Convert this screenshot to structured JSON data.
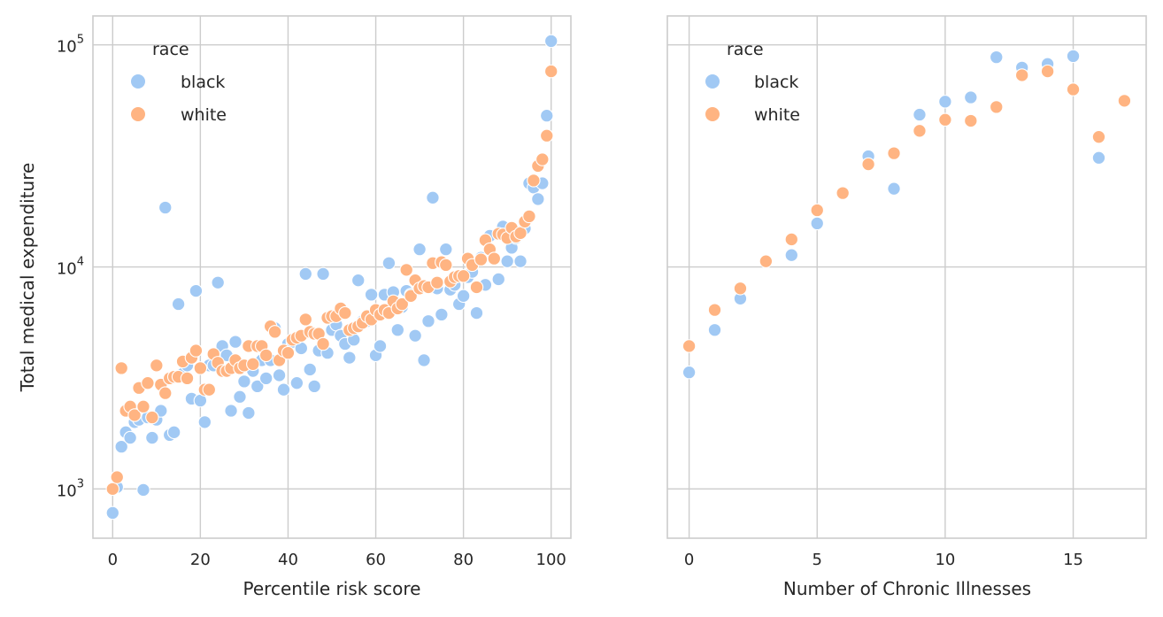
{
  "chart_data": [
    {
      "type": "scatter",
      "title": "",
      "xlabel": "Percentile risk score",
      "ylabel": "Total medical expenditure",
      "yscale": "log",
      "xlim": [
        -4.5,
        104.5
      ],
      "ylim": [
        600,
        135000
      ],
      "xticks": [
        0,
        20,
        40,
        60,
        80,
        100
      ],
      "yticks": [
        1000,
        10000,
        100000
      ],
      "ytick_labels": [
        {
          "base": "10",
          "exp": "3"
        },
        {
          "base": "10",
          "exp": "4"
        },
        {
          "base": "10",
          "exp": "5"
        }
      ],
      "grid": true,
      "legend": {
        "title": "race",
        "position": "upper-left",
        "entries": [
          "black",
          "white"
        ]
      },
      "series": [
        {
          "name": "black",
          "color": "#a1c9f4",
          "points": [
            [
              0,
              780
            ],
            [
              1,
              1020
            ],
            [
              2,
              1550
            ],
            [
              3,
              1800
            ],
            [
              4,
              1700
            ],
            [
              5,
              2000
            ],
            [
              6,
              2050
            ],
            [
              7,
              990
            ],
            [
              8,
              2100
            ],
            [
              9,
              1700
            ],
            [
              10,
              2050
            ],
            [
              11,
              2250
            ],
            [
              12,
              18500
            ],
            [
              13,
              1750
            ],
            [
              14,
              1800
            ],
            [
              15,
              6800
            ],
            [
              16,
              3300
            ],
            [
              17,
              3600
            ],
            [
              18,
              2550
            ],
            [
              19,
              7800
            ],
            [
              20,
              2500
            ],
            [
              21,
              2000
            ],
            [
              22,
              3600
            ],
            [
              23,
              3600
            ],
            [
              24,
              8500
            ],
            [
              25,
              4400
            ],
            [
              26,
              4000
            ],
            [
              27,
              2250
            ],
            [
              28,
              4600
            ],
            [
              29,
              2600
            ],
            [
              30,
              3050
            ],
            [
              31,
              2200
            ],
            [
              32,
              3400
            ],
            [
              33,
              2900
            ],
            [
              34,
              3800
            ],
            [
              35,
              3150
            ],
            [
              36,
              3800
            ],
            [
              37,
              5300
            ],
            [
              38,
              3250
            ],
            [
              39,
              2800
            ],
            [
              40,
              4500
            ],
            [
              41,
              4600
            ],
            [
              42,
              3000
            ],
            [
              43,
              4300
            ],
            [
              44,
              9300
            ],
            [
              45,
              3450
            ],
            [
              46,
              2900
            ],
            [
              47,
              4200
            ],
            [
              48,
              9300
            ],
            [
              49,
              4100
            ],
            [
              50,
              5200
            ],
            [
              51,
              5500
            ],
            [
              52,
              4900
            ],
            [
              53,
              4500
            ],
            [
              54,
              3900
            ],
            [
              55,
              4700
            ],
            [
              56,
              8700
            ],
            [
              57,
              5700
            ],
            [
              58,
              5700
            ],
            [
              59,
              7500
            ],
            [
              60,
              4000
            ],
            [
              61,
              4400
            ],
            [
              62,
              7500
            ],
            [
              63,
              10400
            ],
            [
              64,
              7700
            ],
            [
              65,
              5200
            ],
            [
              66,
              6600
            ],
            [
              67,
              7800
            ],
            [
              68,
              7500
            ],
            [
              69,
              4900
            ],
            [
              70,
              12000
            ],
            [
              71,
              3800
            ],
            [
              72,
              5700
            ],
            [
              73,
              20500
            ],
            [
              74,
              8000
            ],
            [
              75,
              6100
            ],
            [
              76,
              12000
            ],
            [
              77,
              7900
            ],
            [
              78,
              8300
            ],
            [
              79,
              6800
            ],
            [
              80,
              7400
            ],
            [
              81,
              9000
            ],
            [
              82,
              9500
            ],
            [
              83,
              6200
            ],
            [
              84,
              11000
            ],
            [
              85,
              8300
            ],
            [
              86,
              13800
            ],
            [
              87,
              11000
            ],
            [
              88,
              8800
            ],
            [
              89,
              15200
            ],
            [
              90,
              10600
            ],
            [
              91,
              12200
            ],
            [
              92,
              13500
            ],
            [
              93,
              10600
            ],
            [
              94,
              14900
            ],
            [
              95,
              23800
            ],
            [
              96,
              22800
            ],
            [
              97,
              20200
            ],
            [
              98,
              23800
            ],
            [
              99,
              48000
            ],
            [
              100,
              104000
            ]
          ]
        },
        {
          "name": "white",
          "color": "#ffb482",
          "points": [
            [
              0,
              1000
            ],
            [
              1,
              1130
            ],
            [
              2,
              3500
            ],
            [
              3,
              2250
            ],
            [
              4,
              2350
            ],
            [
              5,
              2150
            ],
            [
              6,
              2850
            ],
            [
              7,
              2350
            ],
            [
              8,
              3000
            ],
            [
              9,
              2100
            ],
            [
              10,
              3600
            ],
            [
              11,
              2950
            ],
            [
              12,
              2700
            ],
            [
              13,
              3150
            ],
            [
              14,
              3200
            ],
            [
              15,
              3200
            ],
            [
              16,
              3750
            ],
            [
              17,
              3150
            ],
            [
              18,
              3900
            ],
            [
              19,
              4200
            ],
            [
              20,
              3500
            ],
            [
              21,
              2800
            ],
            [
              22,
              2800
            ],
            [
              23,
              4050
            ],
            [
              24,
              3700
            ],
            [
              25,
              3400
            ],
            [
              26,
              3400
            ],
            [
              27,
              3500
            ],
            [
              28,
              3800
            ],
            [
              29,
              3500
            ],
            [
              30,
              3600
            ],
            [
              31,
              4400
            ],
            [
              32,
              3650
            ],
            [
              33,
              4400
            ],
            [
              34,
              4400
            ],
            [
              35,
              4000
            ],
            [
              36,
              5400
            ],
            [
              37,
              5100
            ],
            [
              38,
              3800
            ],
            [
              39,
              4200
            ],
            [
              40,
              4100
            ],
            [
              41,
              4700
            ],
            [
              42,
              4800
            ],
            [
              43,
              4900
            ],
            [
              44,
              5800
            ],
            [
              45,
              5100
            ],
            [
              46,
              5000
            ],
            [
              47,
              5000
            ],
            [
              48,
              4500
            ],
            [
              49,
              5900
            ],
            [
              50,
              6000
            ],
            [
              51,
              6000
            ],
            [
              52,
              6500
            ],
            [
              53,
              6200
            ],
            [
              54,
              5200
            ],
            [
              55,
              5300
            ],
            [
              56,
              5400
            ],
            [
              57,
              5600
            ],
            [
              58,
              6000
            ],
            [
              59,
              5800
            ],
            [
              60,
              6400
            ],
            [
              61,
              6100
            ],
            [
              62,
              6400
            ],
            [
              63,
              6200
            ],
            [
              64,
              7000
            ],
            [
              65,
              6500
            ],
            [
              66,
              6800
            ],
            [
              67,
              9700
            ],
            [
              68,
              7400
            ],
            [
              69,
              8700
            ],
            [
              70,
              8000
            ],
            [
              71,
              8200
            ],
            [
              72,
              8100
            ],
            [
              73,
              10400
            ],
            [
              74,
              8500
            ],
            [
              75,
              10500
            ],
            [
              76,
              10200
            ],
            [
              77,
              8600
            ],
            [
              78,
              9000
            ],
            [
              79,
              9100
            ],
            [
              80,
              9100
            ],
            [
              81,
              10900
            ],
            [
              82,
              10200
            ],
            [
              83,
              8100
            ],
            [
              84,
              10800
            ],
            [
              85,
              13200
            ],
            [
              86,
              12000
            ],
            [
              87,
              10900
            ],
            [
              88,
              14100
            ],
            [
              89,
              14000
            ],
            [
              90,
              13500
            ],
            [
              91,
              15000
            ],
            [
              92,
              13700
            ],
            [
              93,
              14200
            ],
            [
              94,
              16000
            ],
            [
              95,
              16900
            ],
            [
              96,
              24500
            ],
            [
              97,
              28500
            ],
            [
              98,
              30500
            ],
            [
              99,
              39000
            ],
            [
              100,
              76000
            ]
          ]
        }
      ]
    },
    {
      "type": "scatter",
      "title": "",
      "xlabel": "Number of Chronic Illnesses",
      "ylabel": "",
      "yscale": "log",
      "xlim": [
        -0.85,
        17.85
      ],
      "ylim": [
        600,
        135000
      ],
      "xticks": [
        0,
        5,
        10,
        15
      ],
      "yticks": [
        1000,
        10000,
        100000
      ],
      "grid": true,
      "legend": {
        "title": "race",
        "position": "upper-left",
        "entries": [
          "black",
          "white"
        ]
      },
      "series": [
        {
          "name": "black",
          "color": "#a1c9f4",
          "points": [
            [
              0,
              3350
            ],
            [
              1,
              5200
            ],
            [
              2,
              7200
            ],
            [
              4,
              11300
            ],
            [
              5,
              15700
            ],
            [
              7,
              31500
            ],
            [
              8,
              22500
            ],
            [
              9,
              48500
            ],
            [
              10,
              55500
            ],
            [
              11,
              58000
            ],
            [
              12,
              88000
            ],
            [
              13,
              79000
            ],
            [
              14,
              82000
            ],
            [
              15,
              89000
            ],
            [
              16,
              31000
            ]
          ]
        },
        {
          "name": "white",
          "color": "#ffb482",
          "points": [
            [
              0,
              4400
            ],
            [
              1,
              6400
            ],
            [
              2,
              8000
            ],
            [
              3,
              10600
            ],
            [
              4,
              13300
            ],
            [
              5,
              18000
            ],
            [
              6,
              21500
            ],
            [
              7,
              29000
            ],
            [
              8,
              32500
            ],
            [
              9,
              41000
            ],
            [
              10,
              46000
            ],
            [
              11,
              45500
            ],
            [
              12,
              52500
            ],
            [
              13,
              73000
            ],
            [
              14,
              76000
            ],
            [
              15,
              63000
            ],
            [
              16,
              38500
            ],
            [
              17,
              56000
            ]
          ]
        }
      ]
    }
  ]
}
